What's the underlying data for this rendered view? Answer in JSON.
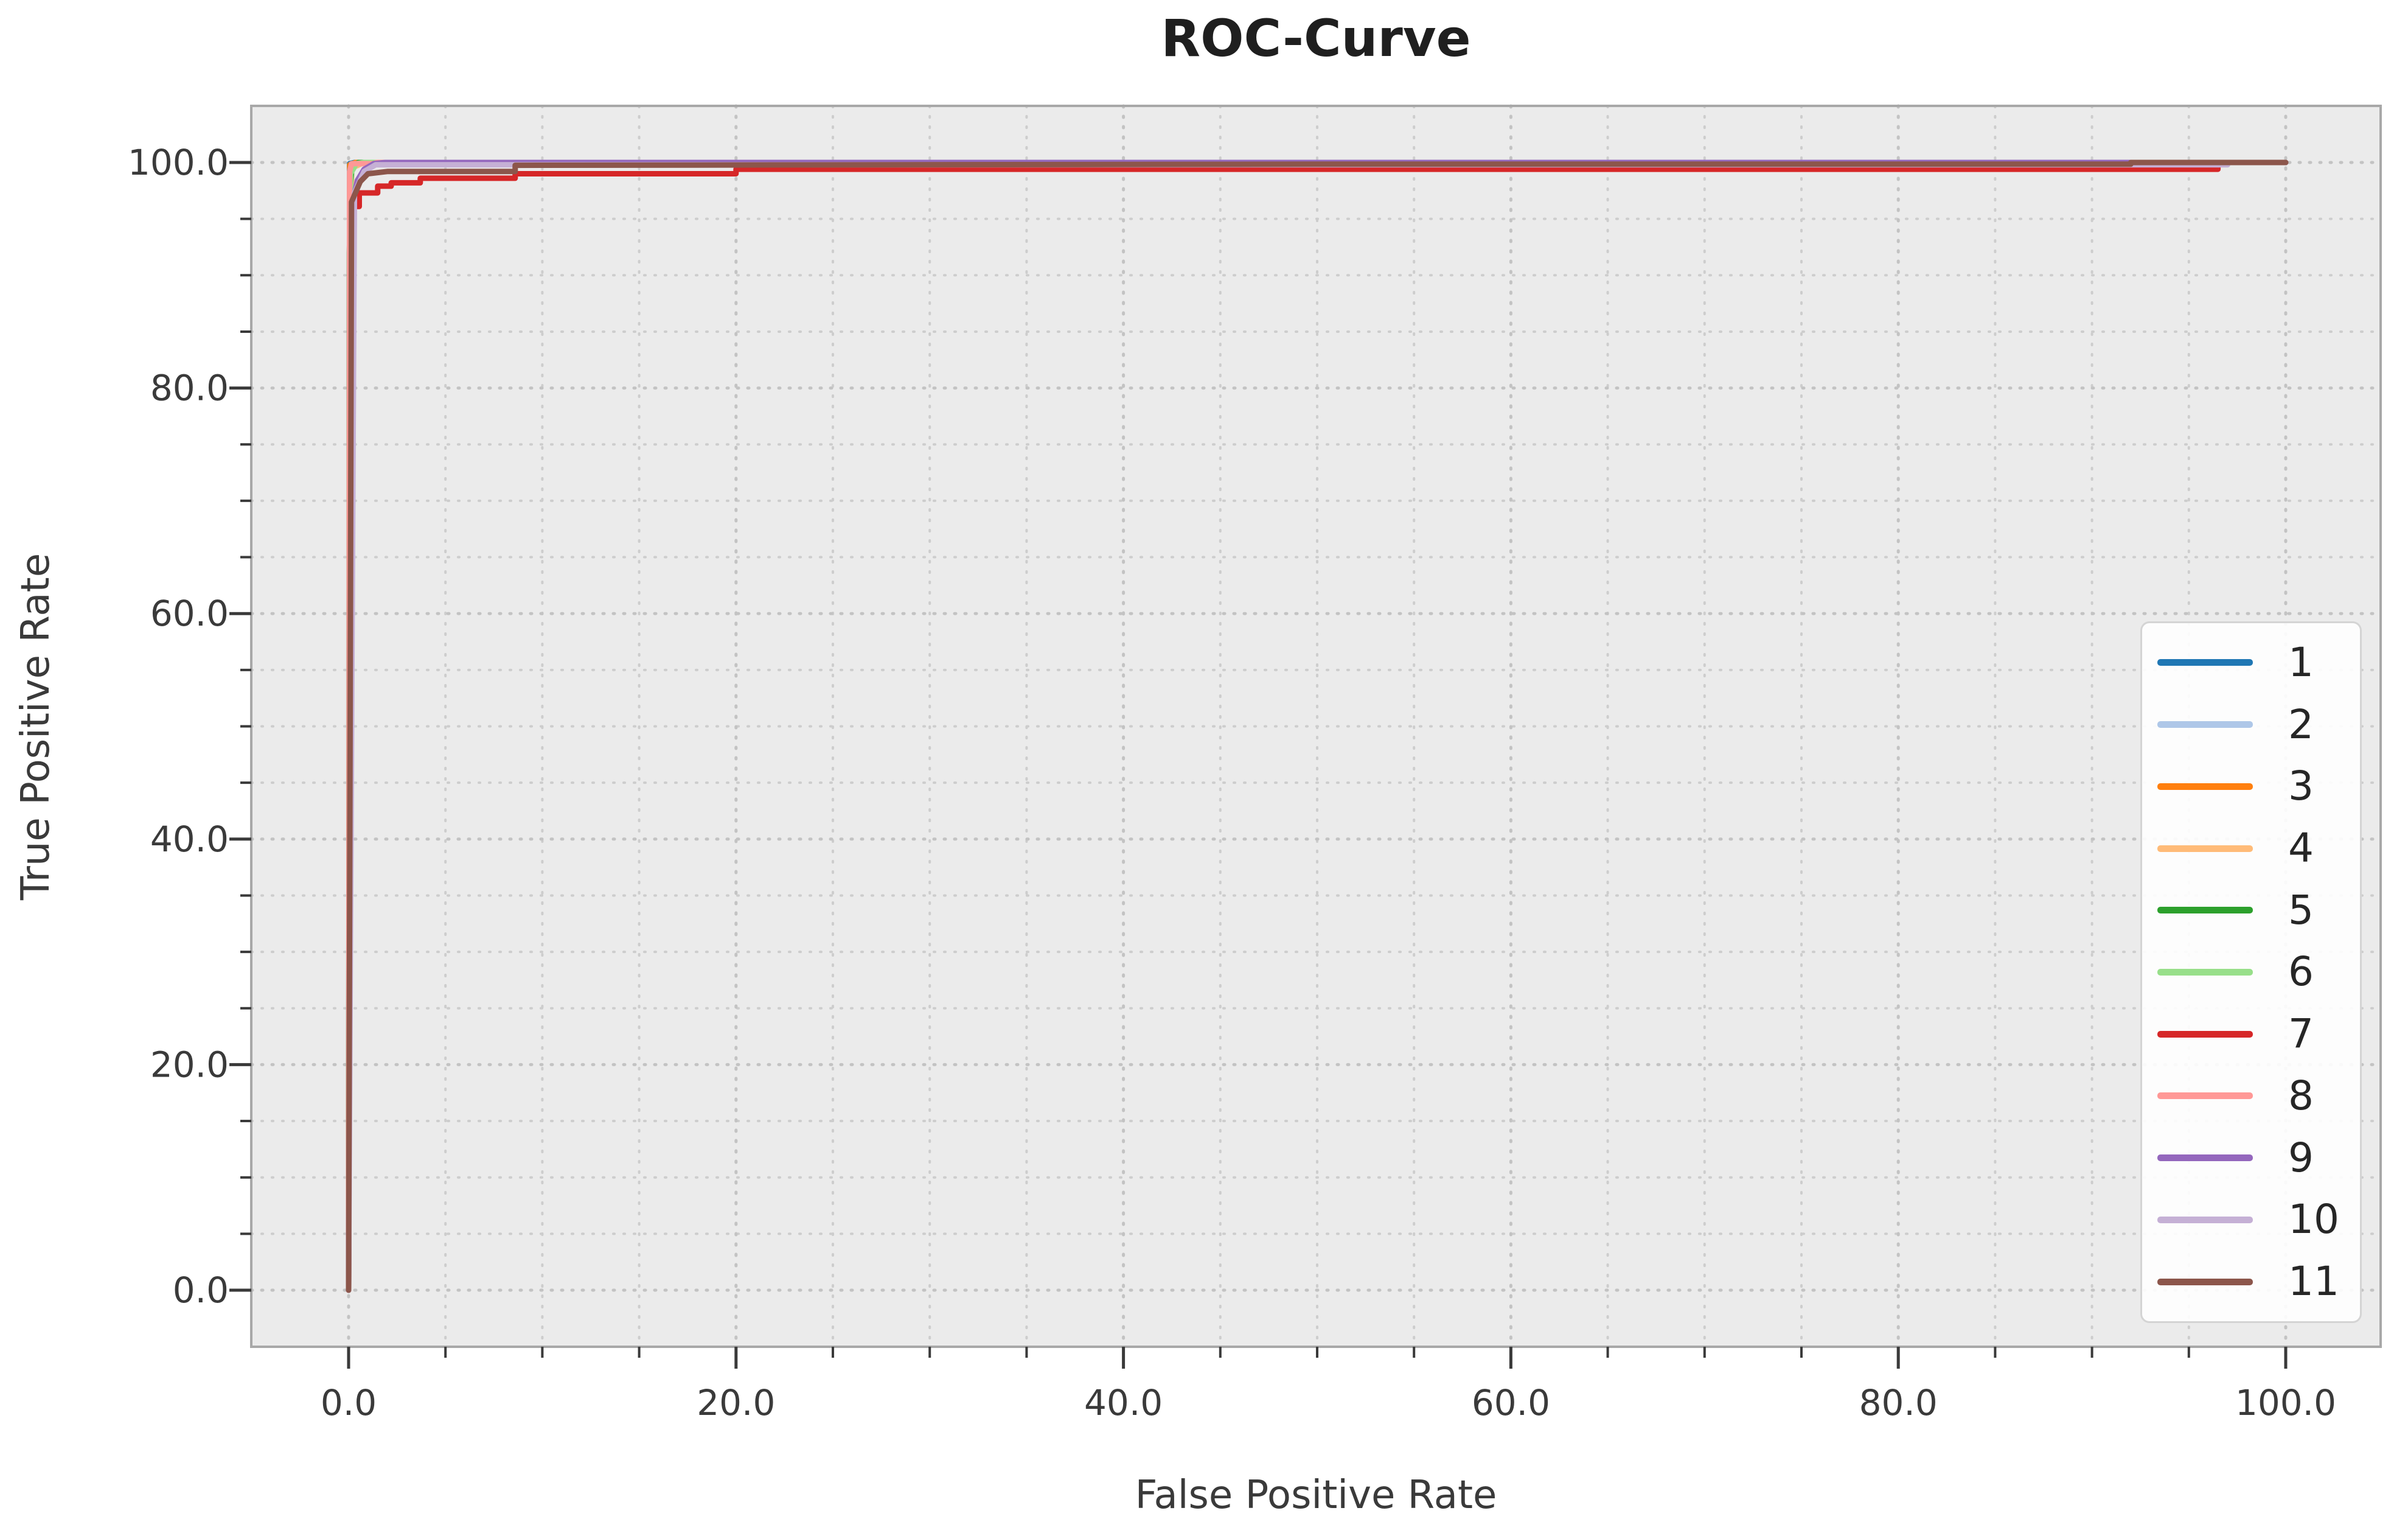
{
  "figure": {
    "title": "ROC-Curve"
  },
  "x_axis": {
    "label": "False Positive Rate",
    "tick_labels": [
      "0.0",
      "20.0",
      "40.0",
      "60.0",
      "80.0",
      "100.0"
    ]
  },
  "y_axis": {
    "label": "True Positive Rate",
    "tick_labels": [
      "0.0",
      "20.0",
      "40.0",
      "60.0",
      "80.0",
      "100.0"
    ]
  },
  "legend": {
    "position": "lower right",
    "entries": [
      "1",
      "2",
      "3",
      "4",
      "5",
      "6",
      "7",
      "8",
      "9",
      "10",
      "11"
    ]
  },
  "colors": {
    "figure_bg": "#ffffff",
    "plot_bg": "#ebebeb",
    "grid_major": "#c3c3c3",
    "grid_minor": "#cdcdcd",
    "spine": "#a8a8a8",
    "tick": "#3a3a3a",
    "tick_label": "#3a3a3a",
    "title_text": "#1f1f1f",
    "legend_border": "#d4d4d4",
    "legend_bg": "rgba(255,255,255,0.9)"
  },
  "chart_data": {
    "type": "line",
    "title": "ROC-Curve",
    "xlabel": "False Positive Rate",
    "ylabel": "True Positive Rate",
    "xlim": [
      -5,
      105
    ],
    "ylim": [
      -5,
      105
    ],
    "x_ticks": [
      0,
      20,
      40,
      60,
      80,
      100
    ],
    "y_ticks": [
      0,
      20,
      40,
      60,
      80,
      100
    ],
    "minor_tick_interval": 5,
    "grid": "dotted, major and minor, both axes",
    "legend_position": "lower right",
    "series": [
      {
        "name": "1",
        "color": "#1f77b4",
        "points": [
          [
            0,
            0
          ],
          [
            0.05,
            99.9
          ],
          [
            0.3,
            100
          ],
          [
            100,
            100
          ]
        ]
      },
      {
        "name": "2",
        "color": "#aec7e8",
        "points": [
          [
            0,
            0
          ],
          [
            0.08,
            99.7
          ],
          [
            0.5,
            100
          ],
          [
            100,
            100
          ]
        ]
      },
      {
        "name": "3",
        "color": "#ff7f0e",
        "points": [
          [
            0,
            0
          ],
          [
            0.06,
            99.8
          ],
          [
            0.35,
            100
          ],
          [
            100,
            100
          ]
        ]
      },
      {
        "name": "4",
        "color": "#ffbb78",
        "points": [
          [
            0,
            0
          ],
          [
            0.15,
            99.5
          ],
          [
            0.8,
            100
          ],
          [
            100,
            100
          ]
        ]
      },
      {
        "name": "5",
        "color": "#2ca02c",
        "points": [
          [
            0,
            0
          ],
          [
            0.04,
            92
          ],
          [
            0.1,
            98.2
          ],
          [
            0.18,
            99.6
          ],
          [
            0.5,
            100
          ],
          [
            100,
            100
          ]
        ]
      },
      {
        "name": "6",
        "color": "#98df8a",
        "points": [
          [
            0,
            0
          ],
          [
            0.1,
            99
          ],
          [
            0.4,
            99.9
          ],
          [
            0.8,
            100
          ],
          [
            100,
            100
          ]
        ]
      },
      {
        "name": "7",
        "color": "#d62728",
        "points": [
          [
            0,
            0
          ],
          [
            0.08,
            94.2
          ],
          [
            0.08,
            96.1
          ],
          [
            0.55,
            96.1
          ],
          [
            0.55,
            97.3
          ],
          [
            1.5,
            97.3
          ],
          [
            1.5,
            97.9
          ],
          [
            2.2,
            97.9
          ],
          [
            2.2,
            98.2
          ],
          [
            3.7,
            98.2
          ],
          [
            3.7,
            98.6
          ],
          [
            8.6,
            98.6
          ],
          [
            8.6,
            99.0
          ],
          [
            20,
            99.0
          ],
          [
            20,
            99.4
          ],
          [
            96.5,
            99.4
          ],
          [
            96.5,
            100
          ],
          [
            100,
            100
          ]
        ]
      },
      {
        "name": "8",
        "color": "#ff9896",
        "points": [
          [
            0,
            0
          ],
          [
            0.05,
            99.2
          ],
          [
            0.15,
            99.9
          ],
          [
            1.3,
            99.9
          ],
          [
            1.45,
            100
          ],
          [
            100,
            100
          ]
        ]
      },
      {
        "name": "9",
        "color": "#9467bd",
        "points": [
          [
            0,
            0
          ],
          [
            0.2,
            95.3
          ],
          [
            0.3,
            97.2
          ],
          [
            0.45,
            98.4
          ],
          [
            0.8,
            99.4
          ],
          [
            1.3,
            99.9
          ],
          [
            1.9,
            100
          ],
          [
            100,
            100
          ]
        ]
      },
      {
        "name": "10",
        "color": "#c5b0d5",
        "points": [
          [
            0,
            0
          ],
          [
            0.3,
            97.3
          ],
          [
            0.8,
            99.2
          ],
          [
            1.4,
            99.8
          ],
          [
            97,
            99.8
          ],
          [
            97,
            100
          ],
          [
            100,
            100
          ]
        ]
      },
      {
        "name": "11",
        "color": "#8c564b",
        "points": [
          [
            0,
            0
          ],
          [
            0.15,
            96.5
          ],
          [
            0.6,
            98.3
          ],
          [
            1.0,
            99.0
          ],
          [
            2,
            99.2
          ],
          [
            8.6,
            99.2
          ],
          [
            8.6,
            99.75
          ],
          [
            50,
            99.85
          ],
          [
            92,
            99.85
          ],
          [
            92,
            100
          ],
          [
            100,
            100
          ]
        ]
      }
    ]
  }
}
